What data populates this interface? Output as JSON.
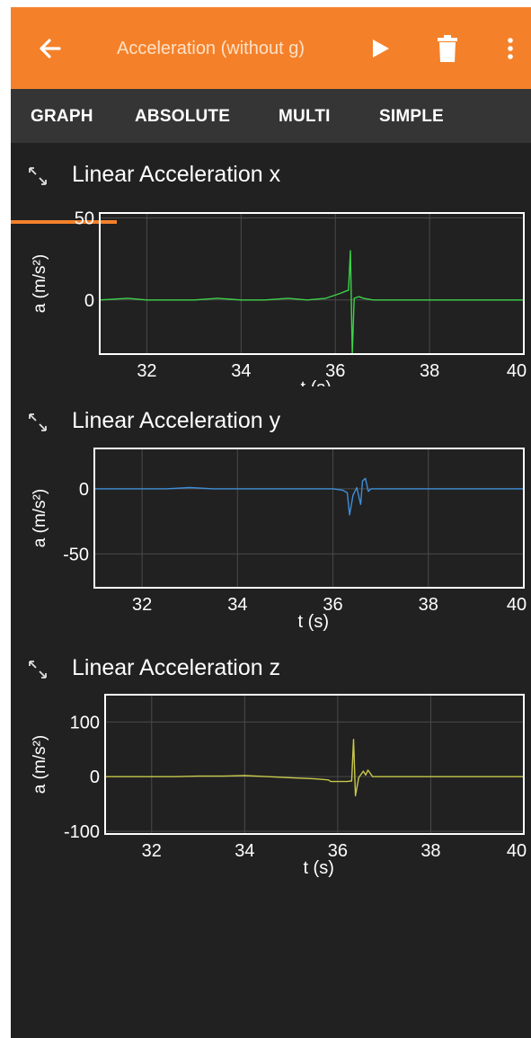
{
  "app_bar": {
    "title": "Acceleration (without g)",
    "back_icon": "arrow-left-icon",
    "play_icon": "play-icon",
    "delete_icon": "trash-icon",
    "menu_icon": "more-vert-icon",
    "background": "#f4812a"
  },
  "tabs": [
    {
      "label": "GRAPH",
      "selected": true
    },
    {
      "label": "ABSOLUTE",
      "selected": false
    },
    {
      "label": "MULTI",
      "selected": false
    },
    {
      "label": "SIMPLE",
      "selected": false
    }
  ],
  "graphs": [
    {
      "title": "Linear Acceleration x",
      "expand_icon": "expand-diagonal-icon"
    },
    {
      "title": "Linear Acceleration y",
      "expand_icon": "expand-diagonal-icon"
    },
    {
      "title": "Linear Acceleration z",
      "expand_icon": "expand-diagonal-icon"
    }
  ],
  "chart_data": [
    {
      "type": "line",
      "title": "Linear Acceleration x",
      "xlabel": "t (s)",
      "ylabel": "a (m/s²)",
      "xlim": [
        31.0,
        40.0
      ],
      "ylim": [
        -33,
        53
      ],
      "x_ticks": [
        "32",
        "34",
        "36",
        "38",
        "40"
      ],
      "y_ticks": [
        "50",
        "0"
      ],
      "grid": true,
      "color": "#3ed24a",
      "series": [
        {
          "x": [
            31.0,
            31.6,
            32.0,
            32.5,
            33.0,
            33.5,
            34.0,
            34.5,
            35.0,
            35.4,
            35.8,
            36.1,
            36.28,
            36.32,
            36.36,
            36.4,
            36.5,
            36.6,
            36.8,
            37.2,
            37.8,
            38.5,
            40.0
          ],
          "y": [
            0,
            1,
            0,
            0,
            0,
            1,
            0,
            0,
            1,
            0,
            1,
            4,
            6,
            30,
            -33,
            1,
            2,
            1,
            0,
            0,
            0,
            0,
            0
          ]
        }
      ]
    },
    {
      "type": "line",
      "title": "Linear Acceleration y",
      "xlabel": "t (s)",
      "ylabel": "a (m/s²)",
      "xlim": [
        31.0,
        40.0
      ],
      "ylim": [
        -76,
        31
      ],
      "x_ticks": [
        "32",
        "34",
        "36",
        "38",
        "40"
      ],
      "y_ticks": [
        "0",
        "-50"
      ],
      "grid": true,
      "color": "#3f8ed8",
      "series": [
        {
          "x": [
            31.0,
            31.5,
            32.0,
            32.5,
            33.0,
            33.5,
            34.0,
            34.5,
            35.0,
            35.5,
            36.0,
            36.2,
            36.3,
            36.35,
            36.42,
            36.5,
            36.58,
            36.62,
            36.68,
            36.74,
            36.8,
            37.2,
            38.0,
            40.0
          ],
          "y": [
            0,
            0,
            0,
            0,
            1,
            0,
            0,
            0,
            0,
            0,
            0,
            -1,
            -3,
            -20,
            -5,
            1,
            -12,
            6,
            8,
            -2,
            0,
            0,
            0,
            0
          ]
        }
      ]
    },
    {
      "type": "line",
      "title": "Linear Acceleration z",
      "xlabel": "t (s)",
      "ylabel": "a (m/s²)",
      "xlim": [
        31.0,
        40.0
      ],
      "ylim": [
        -105,
        150
      ],
      "x_ticks": [
        "32",
        "34",
        "36",
        "38",
        "40"
      ],
      "y_ticks": [
        "100",
        "0",
        "-100"
      ],
      "grid": true,
      "color": "#c8c84c",
      "series": [
        {
          "x": [
            31.0,
            31.5,
            32.0,
            32.5,
            33.0,
            33.5,
            34.0,
            34.5,
            35.0,
            35.5,
            35.8,
            35.85,
            36.2,
            36.3,
            36.34,
            36.38,
            36.45,
            36.55,
            36.6,
            36.65,
            36.75,
            37.0,
            38.0,
            40.0
          ],
          "y": [
            0,
            0,
            0,
            0,
            1,
            1,
            2,
            0,
            -2,
            -4,
            -6,
            -9,
            -9,
            -8,
            68,
            -35,
            -2,
            10,
            3,
            12,
            0,
            0,
            0,
            0
          ]
        }
      ]
    }
  ]
}
